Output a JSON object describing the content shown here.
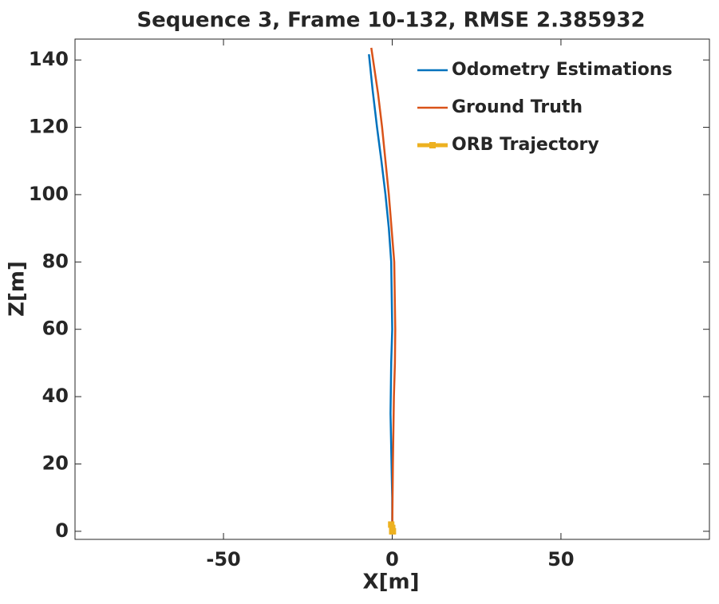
{
  "chart_data": {
    "type": "line",
    "title": "Sequence 3, Frame 10-132, RMSE 2.385932",
    "x_label": "X[m]",
    "y_label": "Z[m]",
    "xlim": [
      -94,
      94
    ],
    "ylim": [
      -2.4,
      146.2
    ],
    "xticks": [
      -50,
      0,
      50
    ],
    "yticks": [
      0,
      20,
      40,
      60,
      80,
      100,
      120,
      140
    ],
    "legend": "top-right",
    "series": [
      {
        "name": "Odometry Estimations",
        "color": "#0072bd",
        "x": [
          0,
          0,
          -0.2,
          -0.5,
          -0.3,
          0,
          -0.3,
          -1,
          -2,
          -3.2,
          -4.5,
          -5.8,
          -6.9
        ],
        "values": [
          0,
          10,
          20,
          35,
          50,
          60,
          80,
          90,
          100,
          110,
          120,
          131,
          141.7
        ]
      },
      {
        "name": "Ground Truth",
        "color": "#d95319",
        "x": [
          0,
          0.2,
          0.5,
          0.8,
          0.9,
          0.6,
          -0.2,
          -1,
          -2,
          -3,
          -4.2,
          -6.2
        ],
        "values": [
          0,
          20,
          40,
          50,
          60,
          80,
          90,
          100,
          110,
          120,
          130,
          143.6
        ]
      },
      {
        "name": "ORB Trajectory",
        "color": "#edb120",
        "x": [
          0,
          -0.3,
          0,
          0.2
        ],
        "values": [
          0,
          2,
          1,
          0
        ]
      }
    ]
  }
}
